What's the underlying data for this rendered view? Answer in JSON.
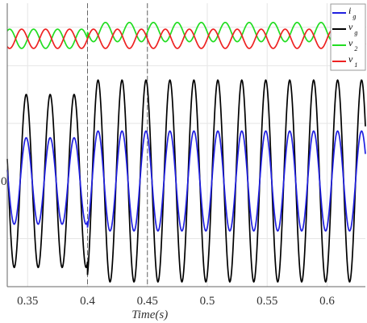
{
  "chart_data": {
    "type": "line",
    "title": "",
    "xlabel": "Time(s)",
    "ylabel": "",
    "xlim": [
      0.333,
      0.632
    ],
    "ylim": [
      -1.1,
      1.85
    ],
    "x_ticks": [
      {
        "value": 0.35,
        "label": "0.35"
      },
      {
        "value": 0.4,
        "label": "0.4"
      },
      {
        "value": 0.45,
        "label": "0.45"
      },
      {
        "value": 0.5,
        "label": "0.5"
      },
      {
        "value": 0.55,
        "label": "0.55"
      },
      {
        "value": 0.6,
        "label": "0.6"
      }
    ],
    "y_zero_label": "0",
    "y_grid_values": [
      -0.6,
      0.6,
      1.2,
      1.6
    ],
    "grid": true,
    "event_markers": [
      0.4,
      0.45
    ],
    "series": [
      {
        "name": "i",
        "subscript": "g",
        "color": "#1f1fe0",
        "frequency_hz": 50,
        "segments": [
          {
            "x_start": 0.333,
            "x_end": 0.4,
            "amplitude": 0.45,
            "offset": 0.0
          },
          {
            "x_start": 0.4,
            "x_end": 0.632,
            "amplitude": 0.52,
            "offset": 0.0
          }
        ]
      },
      {
        "name": "v",
        "subscript": "g",
        "color": "#000000",
        "frequency_hz": 50,
        "segments": [
          {
            "x_start": 0.333,
            "x_end": 0.4,
            "amplitude": 0.9,
            "offset": 0.0
          },
          {
            "x_start": 0.4,
            "x_end": 0.632,
            "amplitude": 1.05,
            "offset": 0.0
          }
        ]
      },
      {
        "name": "v",
        "subscript": "2",
        "color": "#22dd22",
        "frequency_hz": 50,
        "segments": [
          {
            "x_start": 0.333,
            "x_end": 0.4,
            "amplitude": 0.1,
            "offset": 1.48
          },
          {
            "x_start": 0.4,
            "x_end": 0.632,
            "amplitude": 0.1,
            "offset": 1.55
          }
        ]
      },
      {
        "name": "v",
        "subscript": "1",
        "color": "#ee2222",
        "frequency_hz": 50,
        "segments": [
          {
            "x_start": 0.333,
            "x_end": 0.632,
            "amplitude": 0.1,
            "offset": 1.48
          }
        ]
      }
    ],
    "legend": {
      "placement": "top-right"
    }
  }
}
